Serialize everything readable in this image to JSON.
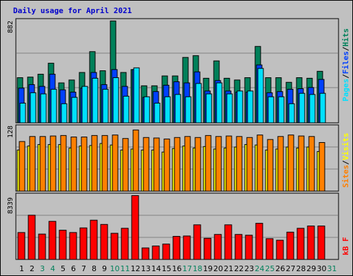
{
  "title": "Daily usage for April 2021",
  "colors": {
    "hits": "#00805A",
    "files": "#0040FF",
    "pages": "#00E0FF",
    "visits": "#FFFF00",
    "sites": "#FF8000",
    "kbytes": "#FF0000",
    "plot_bg": "#C0C0C0",
    "weekend_label": "#00805A",
    "weekday_label": "#000000"
  },
  "chart_data": [
    {
      "type": "bar",
      "panel": "top",
      "ymax_label": "882",
      "ylim": [
        0,
        882
      ],
      "grid": true,
      "legend_placement": "right, rotated vertical",
      "legend": [
        "Pages",
        "Files",
        "Hits"
      ],
      "categories": [
        "1",
        "2",
        "3",
        "4",
        "5",
        "6",
        "7",
        "8",
        "9",
        "10",
        "11",
        "12",
        "13",
        "14",
        "15",
        "16",
        "17",
        "18",
        "19",
        "20",
        "21",
        "22",
        "23",
        "24",
        "25",
        "26",
        "27",
        "28",
        "29",
        "30",
        "31"
      ],
      "weekend_days": [
        "3",
        "4",
        "10",
        "11",
        "17",
        "18",
        "24",
        "25",
        "31"
      ],
      "series": [
        {
          "name": "Hits",
          "color_key": "hits",
          "values": [
            390,
            395,
            420,
            515,
            345,
            370,
            435,
            615,
            450,
            880,
            435,
            460,
            320,
            320,
            405,
            405,
            565,
            580,
            385,
            535,
            385,
            370,
            390,
            660,
            390,
            390,
            350,
            390,
            385,
            445,
            0
          ]
        },
        {
          "name": "Files",
          "color_key": "files",
          "values": [
            300,
            330,
            315,
            420,
            285,
            265,
            300,
            435,
            330,
            460,
            315,
            460,
            220,
            270,
            325,
            355,
            345,
            440,
            275,
            365,
            275,
            265,
            265,
            500,
            260,
            270,
            290,
            295,
            305,
            375,
            0
          ]
        },
        {
          "name": "Pages",
          "color_key": "pages",
          "values": [
            170,
            260,
            250,
            290,
            165,
            220,
            315,
            385,
            290,
            390,
            230,
            475,
            225,
            170,
            225,
            245,
            225,
            340,
            250,
            345,
            250,
            275,
            275,
            470,
            225,
            225,
            165,
            255,
            245,
            255,
            0
          ]
        }
      ]
    },
    {
      "type": "bar",
      "panel": "middle",
      "ymax_label": "128",
      "ylim": [
        0,
        128
      ],
      "grid": true,
      "legend_placement": "right, rotated vertical",
      "legend": [
        "Sites",
        "Visits"
      ],
      "categories": [
        "1",
        "2",
        "3",
        "4",
        "5",
        "6",
        "7",
        "8",
        "9",
        "10",
        "11",
        "12",
        "13",
        "14",
        "15",
        "16",
        "17",
        "18",
        "19",
        "20",
        "21",
        "22",
        "23",
        "24",
        "25",
        "26",
        "27",
        "28",
        "29",
        "30",
        "31"
      ],
      "series": [
        {
          "name": "Visits",
          "color_key": "visits",
          "values": [
            82,
            90,
            93,
            93,
            93,
            86,
            90,
            91,
            95,
            92,
            82,
            84,
            82,
            82,
            78,
            85,
            90,
            86,
            89,
            84,
            86,
            88,
            93,
            92,
            82,
            84,
            88,
            86,
            88,
            79,
            0
          ]
        },
        {
          "name": "Sites",
          "color_key": "sites",
          "values": [
            99,
            109,
            109,
            110,
            111,
            108,
            108,
            111,
            111,
            112,
            105,
            122,
            107,
            106,
            104,
            107,
            109,
            107,
            111,
            109,
            110,
            109,
            107,
            112,
            103,
            109,
            112,
            110,
            109,
            97,
            0
          ]
        }
      ]
    },
    {
      "type": "bar",
      "panel": "bottom",
      "ymax_label": "8339",
      "ylim": [
        0,
        8339
      ],
      "grid": true,
      "legend_placement": "right, rotated vertical",
      "legend": [
        "KBytes"
      ],
      "legend_label": "kB F",
      "categories": [
        "1",
        "2",
        "3",
        "4",
        "5",
        "6",
        "7",
        "8",
        "9",
        "10",
        "11",
        "12",
        "13",
        "14",
        "15",
        "16",
        "17",
        "18",
        "19",
        "20",
        "21",
        "22",
        "23",
        "24",
        "25",
        "26",
        "27",
        "28",
        "29",
        "30",
        "31"
      ],
      "series": [
        {
          "name": "KBytes",
          "color_key": "kbytes",
          "values": [
            3500,
            5750,
            3300,
            4950,
            3800,
            3500,
            4100,
            5100,
            4550,
            3400,
            4050,
            8300,
            1500,
            1750,
            2000,
            3000,
            3050,
            4500,
            2750,
            3250,
            4500,
            3250,
            3150,
            4700,
            2700,
            2500,
            3550,
            4050,
            4350,
            4350,
            0
          ]
        }
      ]
    }
  ]
}
